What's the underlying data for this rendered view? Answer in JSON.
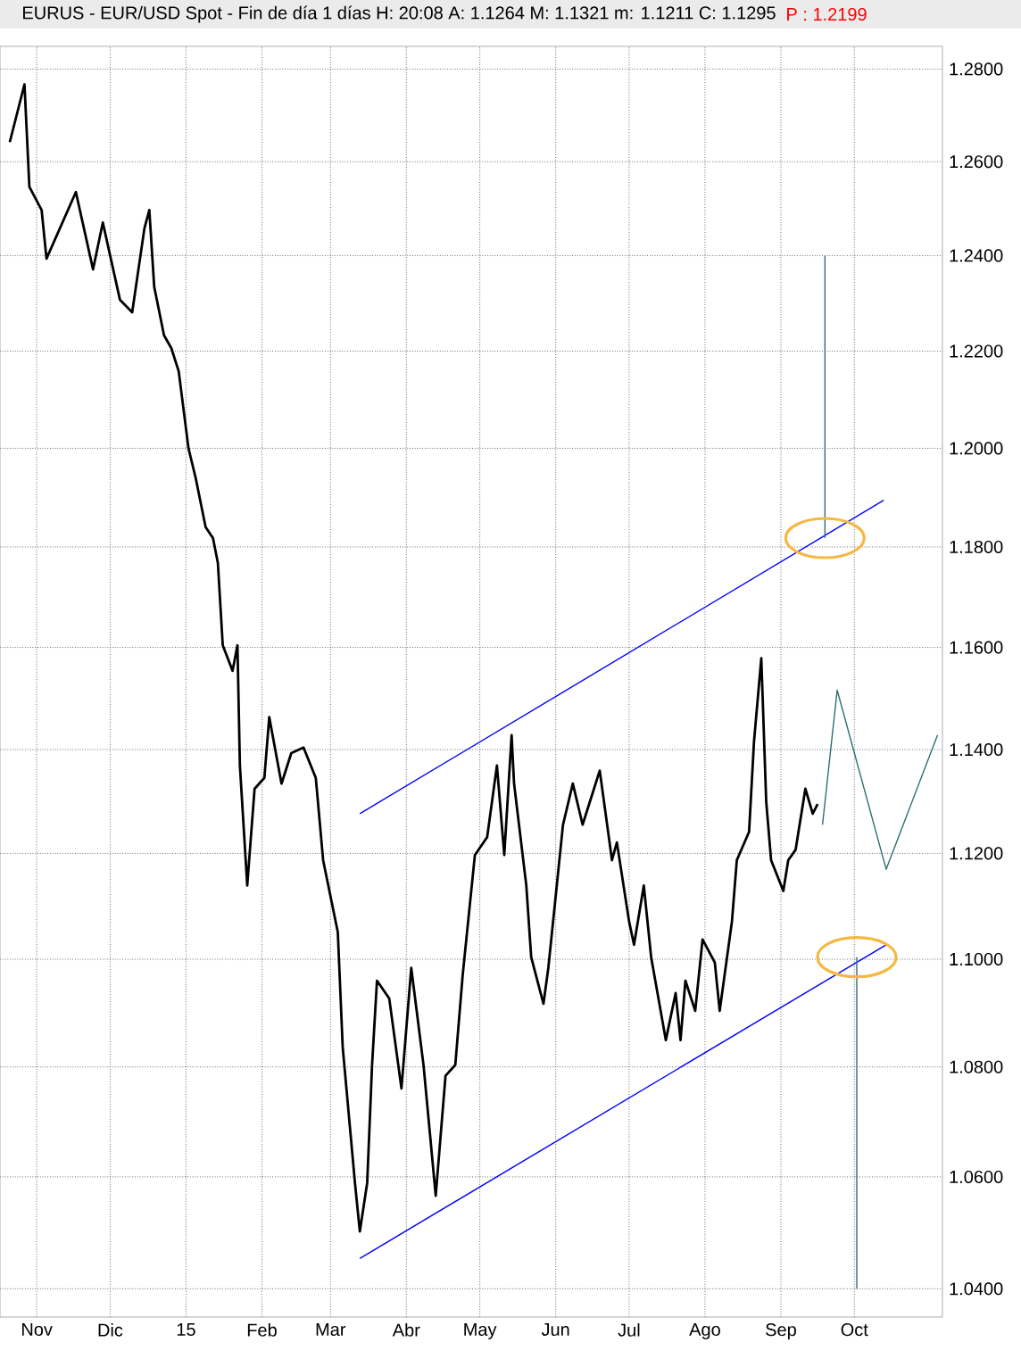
{
  "chart_data": {
    "type": "line",
    "title": "EURUS - EUR/USD Spot - Fin de día 1 días H: 20:08 A: 1.1264 M: 1.1321 m: 1.1211 C: 1.1295",
    "subtitle": "P : 1.2199",
    "log": "y",
    "grid": true,
    "marker": "none",
    "xlim": [
      "2014-10-17",
      "2015-11-06"
    ],
    "ylim": [
      1.035,
      1.285
    ],
    "xticks": [
      {
        "value": "2014-11-01",
        "label": "Nov"
      },
      {
        "value": "2014-12-01",
        "label": "Dic"
      },
      {
        "value": "2015-01-01",
        "label": "15"
      },
      {
        "value": "2015-02-01",
        "label": "Feb"
      },
      {
        "value": "2015-03-01",
        "label": "Mar"
      },
      {
        "value": "2015-04-01",
        "label": "Abr"
      },
      {
        "value": "2015-05-01",
        "label": "May"
      },
      {
        "value": "2015-06-01",
        "label": "Jun"
      },
      {
        "value": "2015-07-01",
        "label": "Jul"
      },
      {
        "value": "2015-08-01",
        "label": "Ago"
      },
      {
        "value": "2015-09-01",
        "label": "Sep"
      },
      {
        "value": "2015-10-01",
        "label": "Oct"
      }
    ],
    "yticks": [
      {
        "value": 1.04,
        "label": "1.0400"
      },
      {
        "value": 1.06,
        "label": "1.0600"
      },
      {
        "value": 1.08,
        "label": "1.0800"
      },
      {
        "value": 1.1,
        "label": "1.1000"
      },
      {
        "value": 1.12,
        "label": "1.1200"
      },
      {
        "value": 1.14,
        "label": "1.1400"
      },
      {
        "value": 1.16,
        "label": "1.1600"
      },
      {
        "value": 1.18,
        "label": "1.1800"
      },
      {
        "value": 1.2,
        "label": "1.2000"
      },
      {
        "value": 1.22,
        "label": "1.2200"
      },
      {
        "value": 1.24,
        "label": "1.2400"
      },
      {
        "value": 1.26,
        "label": "1.2600"
      },
      {
        "value": 1.28,
        "label": "1.2800"
      }
    ],
    "series": [
      {
        "color": "#000000",
        "x": [
          "2014-10-21",
          "2014-10-27",
          "2014-10-29",
          "2014-11-03",
          "2014-11-05",
          "2014-11-17",
          "2014-11-24",
          "2014-11-28",
          "2014-12-05",
          "2014-12-10",
          "2014-12-15",
          "2014-12-17",
          "2014-12-19",
          "2014-12-23",
          "2014-12-26",
          "2014-12-29",
          "2015-01-02",
          "2015-01-05",
          "2015-01-09",
          "2015-01-12",
          "2015-01-14",
          "2015-01-16",
          "2015-01-20",
          "2015-01-22",
          "2015-01-23",
          "2015-01-26",
          "2015-01-29",
          "2015-02-02",
          "2015-02-04",
          "2015-02-09",
          "2015-02-13",
          "2015-02-18",
          "2015-02-23",
          "2015-02-26",
          "2015-03-04",
          "2015-03-06",
          "2015-03-11",
          "2015-03-13",
          "2015-03-16",
          "2015-03-18",
          "2015-03-20",
          "2015-03-25",
          "2015-03-30",
          "2015-04-03",
          "2015-04-08",
          "2015-04-13",
          "2015-04-17",
          "2015-04-21",
          "2015-04-24",
          "2015-04-29",
          "2015-05-04",
          "2015-05-08",
          "2015-05-11",
          "2015-05-14",
          "2015-05-15",
          "2015-05-20",
          "2015-05-22",
          "2015-05-27",
          "2015-05-29",
          "2015-06-04",
          "2015-06-08",
          "2015-06-12",
          "2015-06-19",
          "2015-06-24",
          "2015-06-26",
          "2015-07-01",
          "2015-07-03",
          "2015-07-07",
          "2015-07-10",
          "2015-07-16",
          "2015-07-20",
          "2015-07-22",
          "2015-07-24",
          "2015-07-28",
          "2015-07-31",
          "2015-08-05",
          "2015-08-07",
          "2015-08-12",
          "2015-08-14",
          "2015-08-19",
          "2015-08-21",
          "2015-08-24",
          "2015-08-26",
          "2015-08-28",
          "2015-09-02",
          "2015-09-04",
          "2015-09-07",
          "2015-09-11",
          "2015-09-14",
          "2015-09-16"
        ],
        "values": [
          1.2642,
          1.2767,
          1.2546,
          1.2497,
          1.2394,
          1.2535,
          1.2371,
          1.247,
          1.2307,
          1.2281,
          1.2458,
          1.2497,
          1.2334,
          1.2233,
          1.2206,
          1.2158,
          1.2,
          1.1938,
          1.184,
          1.1818,
          1.1768,
          1.1604,
          1.1554,
          1.1604,
          1.1369,
          1.1139,
          1.1324,
          1.1345,
          1.1463,
          1.1334,
          1.1393,
          1.1404,
          1.1345,
          1.1187,
          1.1051,
          1.0837,
          1.0589,
          1.0502,
          1.0589,
          1.0804,
          1.096,
          1.0927,
          1.0761,
          1.0984,
          1.0804,
          1.0566,
          1.0784,
          1.0804,
          1.097,
          1.1197,
          1.1231,
          1.1369,
          1.1197,
          1.1428,
          1.1334,
          1.1139,
          1.1004,
          1.0917,
          1.0984,
          1.1255,
          1.1334,
          1.1255,
          1.1359,
          1.1187,
          1.1221,
          1.1071,
          1.1027,
          1.1139,
          1.1004,
          1.085,
          1.0937,
          1.085,
          1.096,
          1.0904,
          1.1037,
          1.0994,
          1.0904,
          1.1071,
          1.1187,
          1.1241,
          1.1414,
          1.1579,
          1.13,
          1.1187,
          1.1129,
          1.1187,
          1.1207,
          1.1324,
          1.1276,
          1.1295
        ]
      },
      {
        "color": "#0000ff",
        "x": [
          "2015-03-13",
          "2015-10-13"
        ],
        "values": [
          1.1276,
          1.1894
        ]
      },
      {
        "color": "#0000ff",
        "x": [
          "2015-03-13",
          "2015-10-14"
        ],
        "values": [
          1.0454,
          1.1027
        ]
      },
      {
        "color": "#2f6f6f",
        "x": [
          "2015-09-18",
          "2015-09-24",
          "2015-10-14",
          "2015-11-04"
        ],
        "values": [
          1.1255,
          1.1516,
          1.117,
          1.1428
        ]
      },
      {
        "color": "#2f6f6f",
        "x": [
          "2015-09-19",
          "2015-09-19"
        ],
        "values": [
          1.1818,
          1.24
        ]
      },
      {
        "color": "#2f6f6f",
        "x": [
          "2015-10-02",
          "2015-10-02"
        ],
        "values": [
          1.1004,
          1.04
        ]
      }
    ]
  }
}
